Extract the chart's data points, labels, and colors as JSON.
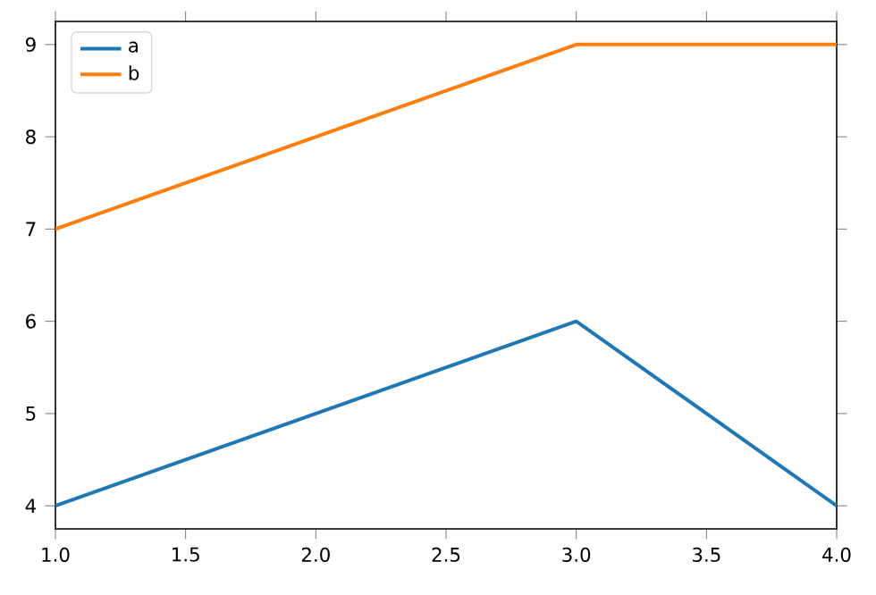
{
  "chart_data": {
    "type": "line",
    "x": [
      1,
      3,
      4
    ],
    "series": [
      {
        "name": "a",
        "color": "#1f77b4",
        "values": [
          4,
          6,
          4
        ]
      },
      {
        "name": "b",
        "color": "#ff7f0e",
        "values": [
          7,
          9,
          9
        ]
      }
    ],
    "xlim": [
      1,
      4
    ],
    "ylim": [
      3.75,
      9.25
    ],
    "xticks": [
      {
        "value": 1,
        "label": "1.0"
      },
      {
        "value": 1.5,
        "label": "1.5"
      },
      {
        "value": 2,
        "label": "2.0"
      },
      {
        "value": 2.5,
        "label": "2.5"
      },
      {
        "value": 3,
        "label": "3.0"
      },
      {
        "value": 3.5,
        "label": "3.5"
      },
      {
        "value": 4,
        "label": "4.0"
      }
    ],
    "yticks": [
      4,
      5,
      6,
      7,
      8,
      9
    ],
    "legend": "top left"
  }
}
